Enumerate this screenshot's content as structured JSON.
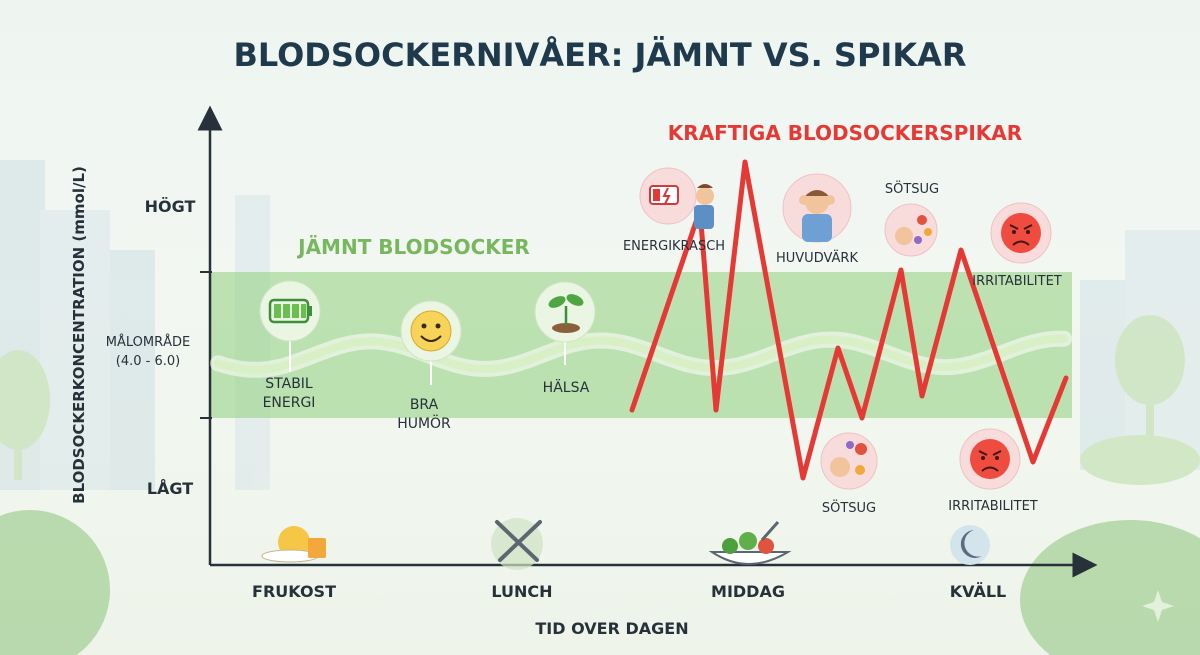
{
  "title": "BLODSOCKERNIVÅER: JÄMNT VS. SPIKAR",
  "chart_data": {
    "type": "line",
    "ylabel": "BLODSOCKERKONCENTRATION (mmol/L)",
    "xlabel": "TID OVER DAGEN",
    "x_categories": [
      "FRUKOST",
      "LUNCH",
      "MIDDAG",
      "KVÄLL"
    ],
    "y_labels": {
      "high": "HÖGT",
      "target_line1": "MÅLOMRÅDE",
      "target_line2": "(4.0 - 6.0)",
      "low": "LÅGT"
    },
    "target_range": [
      4.0,
      6.0
    ],
    "series": [
      {
        "name": "JÄMNT BLODSOCKER",
        "color": "#77b85e",
        "annotations": [
          "STABIL ENERGI",
          "BRA HUMÖR",
          "HÄLSA"
        ]
      },
      {
        "name": "KRAFTIGA BLODSOCKERSPIKAR",
        "color": "#e53935",
        "annotations": [
          "ENERGIKRASCH",
          "HUVUDVÄRK",
          "SÖTSUG",
          "IRRITABILITET",
          "SÖTSUG",
          "IRRITABILITET"
        ]
      }
    ]
  },
  "annotations": {
    "stable_energy": [
      "STABIL",
      "ENERGI"
    ],
    "good_mood": [
      "BRA",
      "HUMÖR"
    ],
    "health": "HÄLSA",
    "energy_crash": "ENERGIKRASCH",
    "headache": "HUVUDVÄRK",
    "craving_top": "SÖTSUG",
    "irritability_top": "IRRITABILITET",
    "craving_bottom": "SÖTSUG",
    "irritability_bottom": "IRRITABILITET"
  },
  "colors": {
    "title": "#1f3a4d",
    "smooth": "#77b85e",
    "band": "#8fcf7b",
    "spike": "#e53935",
    "axis": "#26313a"
  },
  "icons": {
    "battery": "battery-full-icon",
    "smile": "smiley-face-icon",
    "sprout": "sprout-icon",
    "low_battery": "low-battery-icon",
    "headache": "headache-person-icon",
    "candy": "candy-hand-icon",
    "angry": "angry-face-icon",
    "breakfast": "breakfast-icon",
    "lunch": "fork-knife-icon",
    "dinner": "salad-bowl-icon",
    "evening": "moon-icon"
  }
}
